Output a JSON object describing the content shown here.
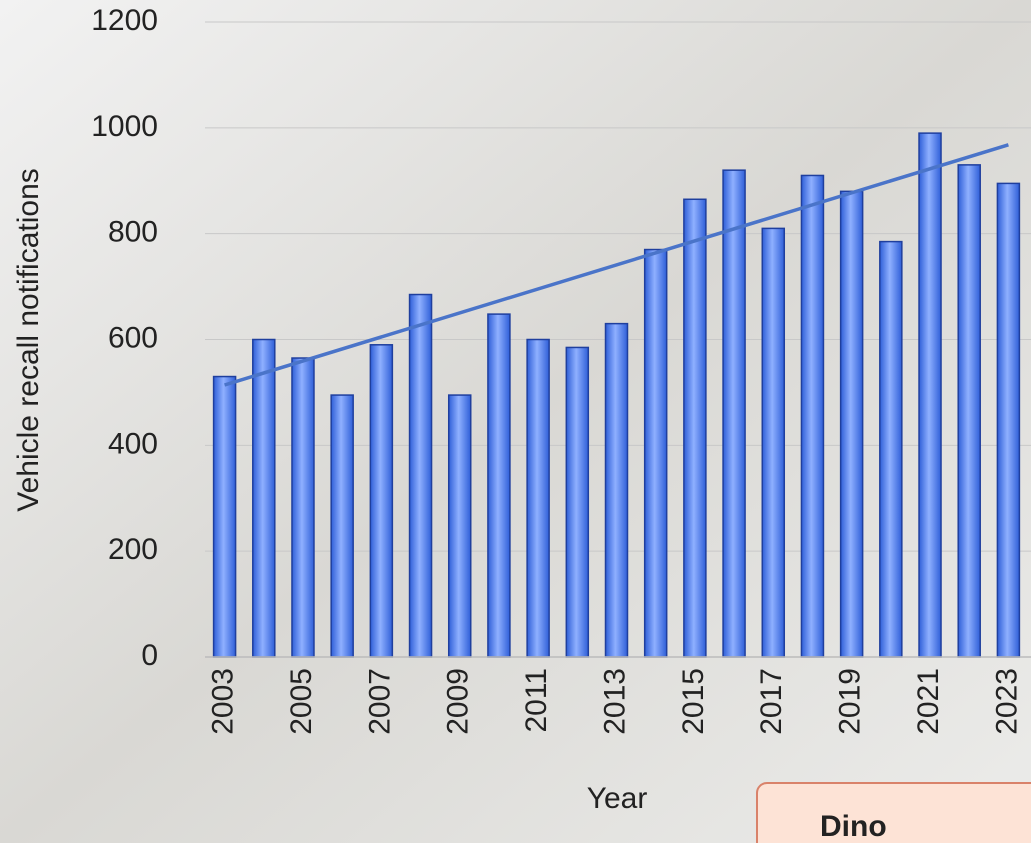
{
  "chart_data": {
    "type": "bar",
    "y_label": "Vehicle recall notifications",
    "x_label": "Year",
    "categories": [
      "2003",
      null,
      "2005",
      null,
      "2007",
      null,
      "2009",
      null,
      "2011",
      null,
      "2013",
      null,
      "2015",
      null,
      "2017",
      null,
      "2019",
      null,
      "2021",
      null,
      "2023"
    ],
    "values": [
      530,
      600,
      565,
      495,
      590,
      685,
      495,
      648,
      600,
      585,
      630,
      770,
      865,
      920,
      810,
      910,
      880,
      785,
      990,
      930,
      895
    ],
    "color": "#3f6fe0",
    "trend_line": {
      "color": "#4a74c9",
      "start": 514,
      "end": 968
    },
    "ylim": [
      0,
      1200
    ],
    "yticks": [
      0,
      200,
      400,
      600,
      800,
      1000,
      1200
    ],
    "grid": true
  },
  "note": {
    "text": "Dino"
  }
}
